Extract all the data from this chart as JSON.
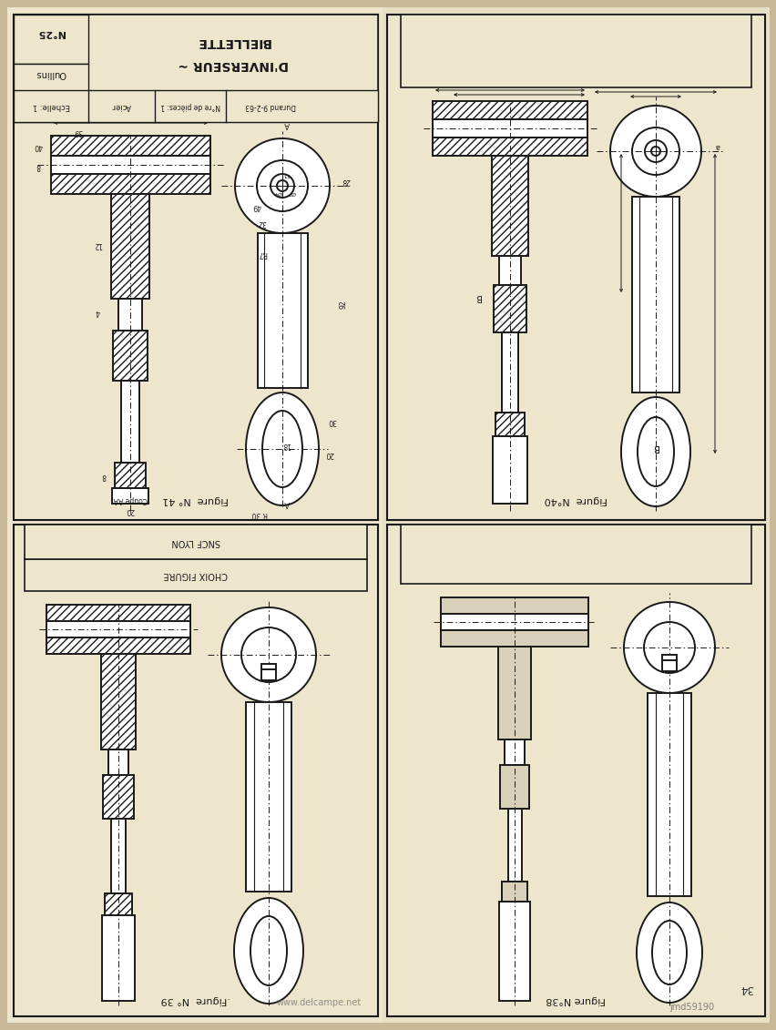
{
  "bg_color": "#c8b898",
  "page_bg": "#ede5cc",
  "line_color": "#1a1a1a",
  "grid_color": "#c0b8a0",
  "panel_fill": "#ede5cc",
  "title_text1": "BIELLETTE",
  "title_text2": "D'INVERSEUR ~",
  "no_text": "N°25",
  "oullins_text": "Oullins",
  "echelle_text": "Echelle: 1",
  "acier_text": "Acier",
  "nbre_text": "N°re de pièces: 1",
  "durand_text": "Durand 9-2-63",
  "fig41_label": "Figure  N° 41",
  "fig40_label": "Figure  N°40",
  "fig39_label": ".Figure  N° 39",
  "fig38_label": "Figure N°38",
  "page_number": "34",
  "wm1": "www.delcampe.net",
  "wm2": "jmd59190",
  "ghost_text_color": "#b0a888"
}
